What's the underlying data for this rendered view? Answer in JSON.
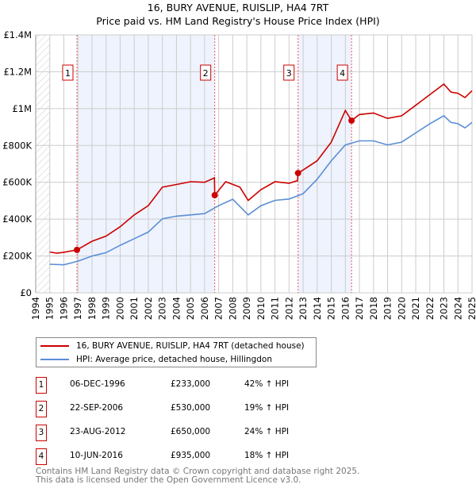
{
  "header": {
    "title_line1": "16, BURY AVENUE, RUISLIP, HA4 7RT",
    "title_line2": "Price paid vs. HM Land Registry's House Price Index (HPI)"
  },
  "chart_data": {
    "type": "line",
    "xlim": [
      1994,
      2025
    ],
    "ylim": [
      0,
      1400000
    ],
    "y_ticks": [
      0,
      200000,
      400000,
      600000,
      800000,
      1000000,
      1200000,
      1400000
    ],
    "y_tick_labels": [
      "£0",
      "£200K",
      "£400K",
      "£600K",
      "£800K",
      "£1M",
      "£1.2M",
      "£1.4M"
    ],
    "x_tick_labels": [
      "1994",
      "1995",
      "1996",
      "1997",
      "1998",
      "1999",
      "2000",
      "2001",
      "2002",
      "2003",
      "2004",
      "2005",
      "2006",
      "2007",
      "2008",
      "2009",
      "2010",
      "2011",
      "2012",
      "2013",
      "2014",
      "2015",
      "2016",
      "2017",
      "2018",
      "2019",
      "2020",
      "2021",
      "2022",
      "2023",
      "2024",
      "2025"
    ],
    "grid": true,
    "hatched_range": [
      1994,
      1995
    ],
    "shaded_ranges": [
      [
        1996.93,
        2006.72
      ],
      [
        2012.64,
        2016.44
      ]
    ],
    "series": [
      {
        "name": "16, BURY AVENUE, RUISLIP, HA4 7RT (detached house)",
        "color": "#cc0000",
        "points": [
          [
            1995,
            222000
          ],
          [
            1995.5,
            215000
          ],
          [
            1996,
            220000
          ],
          [
            1996.93,
            233000
          ],
          [
            1998,
            280000
          ],
          [
            1999,
            308000
          ],
          [
            2000,
            359000
          ],
          [
            2001,
            423000
          ],
          [
            2002,
            473000
          ],
          [
            2003,
            574000
          ],
          [
            2004,
            588000
          ],
          [
            2005,
            603000
          ],
          [
            2006,
            600000
          ],
          [
            2006.7,
            624000
          ],
          [
            2006.72,
            530000
          ],
          [
            2007.5,
            603000
          ],
          [
            2008.5,
            574000
          ],
          [
            2009.1,
            502000
          ],
          [
            2010,
            560000
          ],
          [
            2011,
            603000
          ],
          [
            2012,
            595000
          ],
          [
            2012.6,
            609000
          ],
          [
            2012.64,
            650000
          ],
          [
            2013,
            667000
          ],
          [
            2014,
            717000
          ],
          [
            2015,
            818000
          ],
          [
            2016,
            990000
          ],
          [
            2016.44,
            935000
          ],
          [
            2017,
            968000
          ],
          [
            2018,
            976000
          ],
          [
            2019,
            947000
          ],
          [
            2020,
            961000
          ],
          [
            2021,
            1018000
          ],
          [
            2022,
            1076000
          ],
          [
            2023,
            1133000
          ],
          [
            2023.5,
            1090000
          ],
          [
            2024,
            1083000
          ],
          [
            2024.5,
            1060000
          ],
          [
            2025,
            1097000
          ]
        ]
      },
      {
        "name": "HPI: Average price, detached house, Hillingdon",
        "color": "#5b8ed6",
        "points": [
          [
            1995,
            155000
          ],
          [
            1996,
            152000
          ],
          [
            1997,
            172000
          ],
          [
            1998,
            200000
          ],
          [
            1999,
            218000
          ],
          [
            2000,
            258000
          ],
          [
            2001,
            294000
          ],
          [
            2002,
            330000
          ],
          [
            2003,
            402000
          ],
          [
            2004,
            416000
          ],
          [
            2005,
            423000
          ],
          [
            2006,
            430000
          ],
          [
            2007,
            473000
          ],
          [
            2008,
            508000
          ],
          [
            2009.1,
            423000
          ],
          [
            2010,
            473000
          ],
          [
            2011,
            502000
          ],
          [
            2012,
            509000
          ],
          [
            2013,
            538000
          ],
          [
            2014,
            617000
          ],
          [
            2015,
            717000
          ],
          [
            2016,
            803000
          ],
          [
            2017,
            825000
          ],
          [
            2018,
            825000
          ],
          [
            2019,
            803000
          ],
          [
            2020,
            818000
          ],
          [
            2021,
            868000
          ],
          [
            2022,
            918000
          ],
          [
            2023,
            961000
          ],
          [
            2023.5,
            925000
          ],
          [
            2024,
            918000
          ],
          [
            2024.5,
            895000
          ],
          [
            2025,
            925000
          ]
        ]
      }
    ],
    "sales": [
      {
        "id": "1",
        "year": 1996.93,
        "price": 233000
      },
      {
        "id": "2",
        "year": 2006.72,
        "price": 530000
      },
      {
        "id": "3",
        "year": 2012.64,
        "price": 650000
      },
      {
        "id": "4",
        "year": 2016.44,
        "price": 935000
      }
    ]
  },
  "legend": {
    "property_label": "16, BURY AVENUE, RUISLIP, HA4 7RT (detached house)",
    "hpi_label": "HPI: Average price, detached house, Hillingdon"
  },
  "transactions": [
    {
      "id": "1",
      "date": "06-DEC-1996",
      "price": "£233,000",
      "hpi": "42% ↑ HPI"
    },
    {
      "id": "2",
      "date": "22-SEP-2006",
      "price": "£530,000",
      "hpi": "19% ↑ HPI"
    },
    {
      "id": "3",
      "date": "23-AUG-2012",
      "price": "£650,000",
      "hpi": "24% ↑ HPI"
    },
    {
      "id": "4",
      "date": "10-JUN-2016",
      "price": "£935,000",
      "hpi": "18% ↑ HPI"
    }
  ],
  "footer": {
    "line1": "Contains HM Land Registry data © Crown copyright and database right 2025.",
    "line2": "This data is licensed under the Open Government Licence v3.0."
  }
}
